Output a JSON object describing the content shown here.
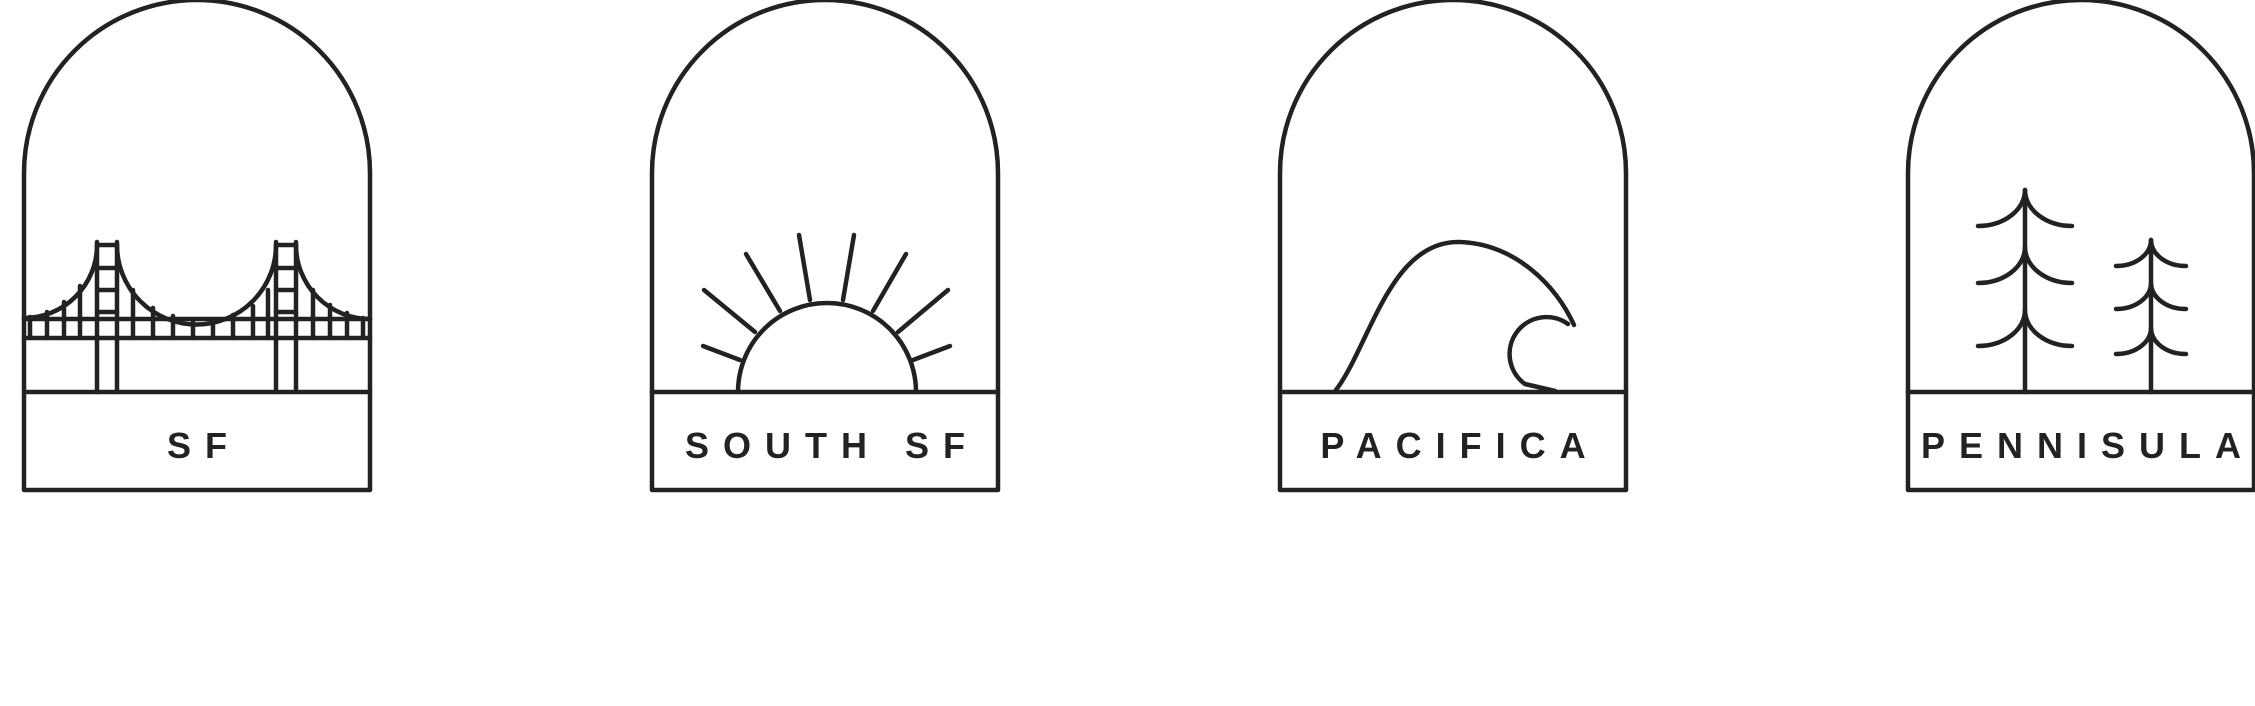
{
  "badges": [
    {
      "label": "SF",
      "icon": "golden-gate-bridge-icon"
    },
    {
      "label": "SOUTH SF",
      "icon": "rising-sun-icon"
    },
    {
      "label": "PACIFICA",
      "icon": "ocean-wave-icon"
    },
    {
      "label": "PENNISULA",
      "icon": "pine-trees-icon"
    }
  ],
  "stroke_color": "#222222",
  "background_color": "#ffffff"
}
